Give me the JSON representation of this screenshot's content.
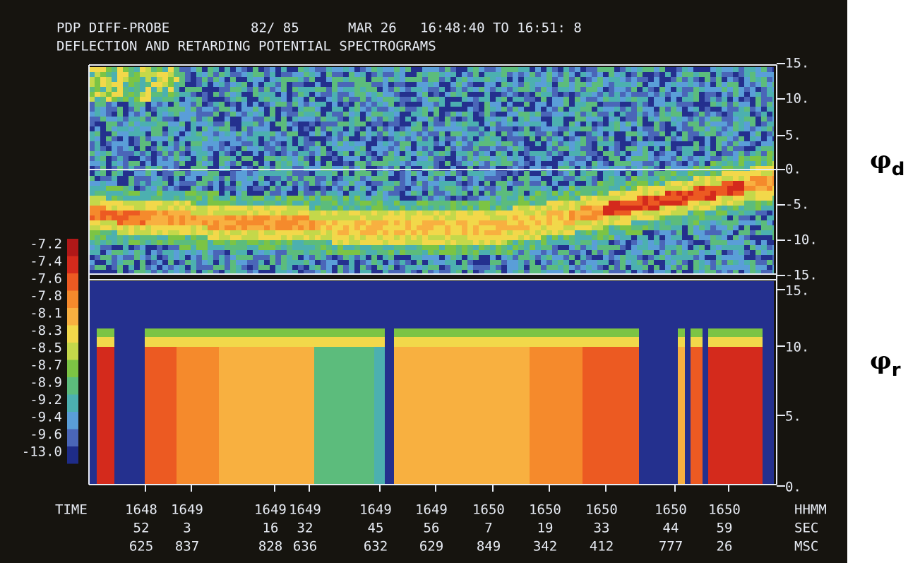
{
  "header": {
    "title": "PDP DIFF-PROBE",
    "orbit": "82/ 85",
    "date": "MAR 26",
    "time_range": "16:48:40 TO 16:51: 8",
    "subtitle": "DEFLECTION AND RETARDING POTENTIAL SPECTROGRAMS"
  },
  "colorbar": {
    "labels": [
      "-7.2",
      "-7.4",
      "-7.6",
      "-7.8",
      "-8.1",
      "-8.3",
      "-8.5",
      "-8.7",
      "-8.9",
      "-9.2",
      "-9.4",
      "-9.6",
      "-13.0"
    ]
  },
  "top_panel": {
    "axis_labels": [
      "15.",
      "10.",
      "5.",
      "0.",
      "-5.",
      "-10.",
      "-15."
    ],
    "symbol": "φ",
    "subscript": "d"
  },
  "bottom_panel": {
    "axis_labels": [
      "15.",
      "10.",
      "5.",
      "0."
    ],
    "symbol": "φ",
    "subscript": "r"
  },
  "time_axis": {
    "row_label": "TIME",
    "units": [
      "HHMM",
      "SEC",
      "MSC"
    ],
    "columns": [
      [
        "1648",
        "52",
        "625"
      ],
      [
        "1649",
        "3",
        "837"
      ],
      [
        "1649",
        "16",
        "828"
      ],
      [
        "1649",
        "32",
        "636"
      ],
      [
        "1649",
        "45",
        "632"
      ],
      [
        "1649",
        "56",
        "629"
      ],
      [
        "1650",
        "7",
        "849"
      ],
      [
        "1650",
        "19",
        "342"
      ],
      [
        "1650",
        "33",
        "412"
      ],
      [
        "1650",
        "44",
        "777"
      ],
      [
        "1650",
        "59",
        "26"
      ]
    ]
  }
}
